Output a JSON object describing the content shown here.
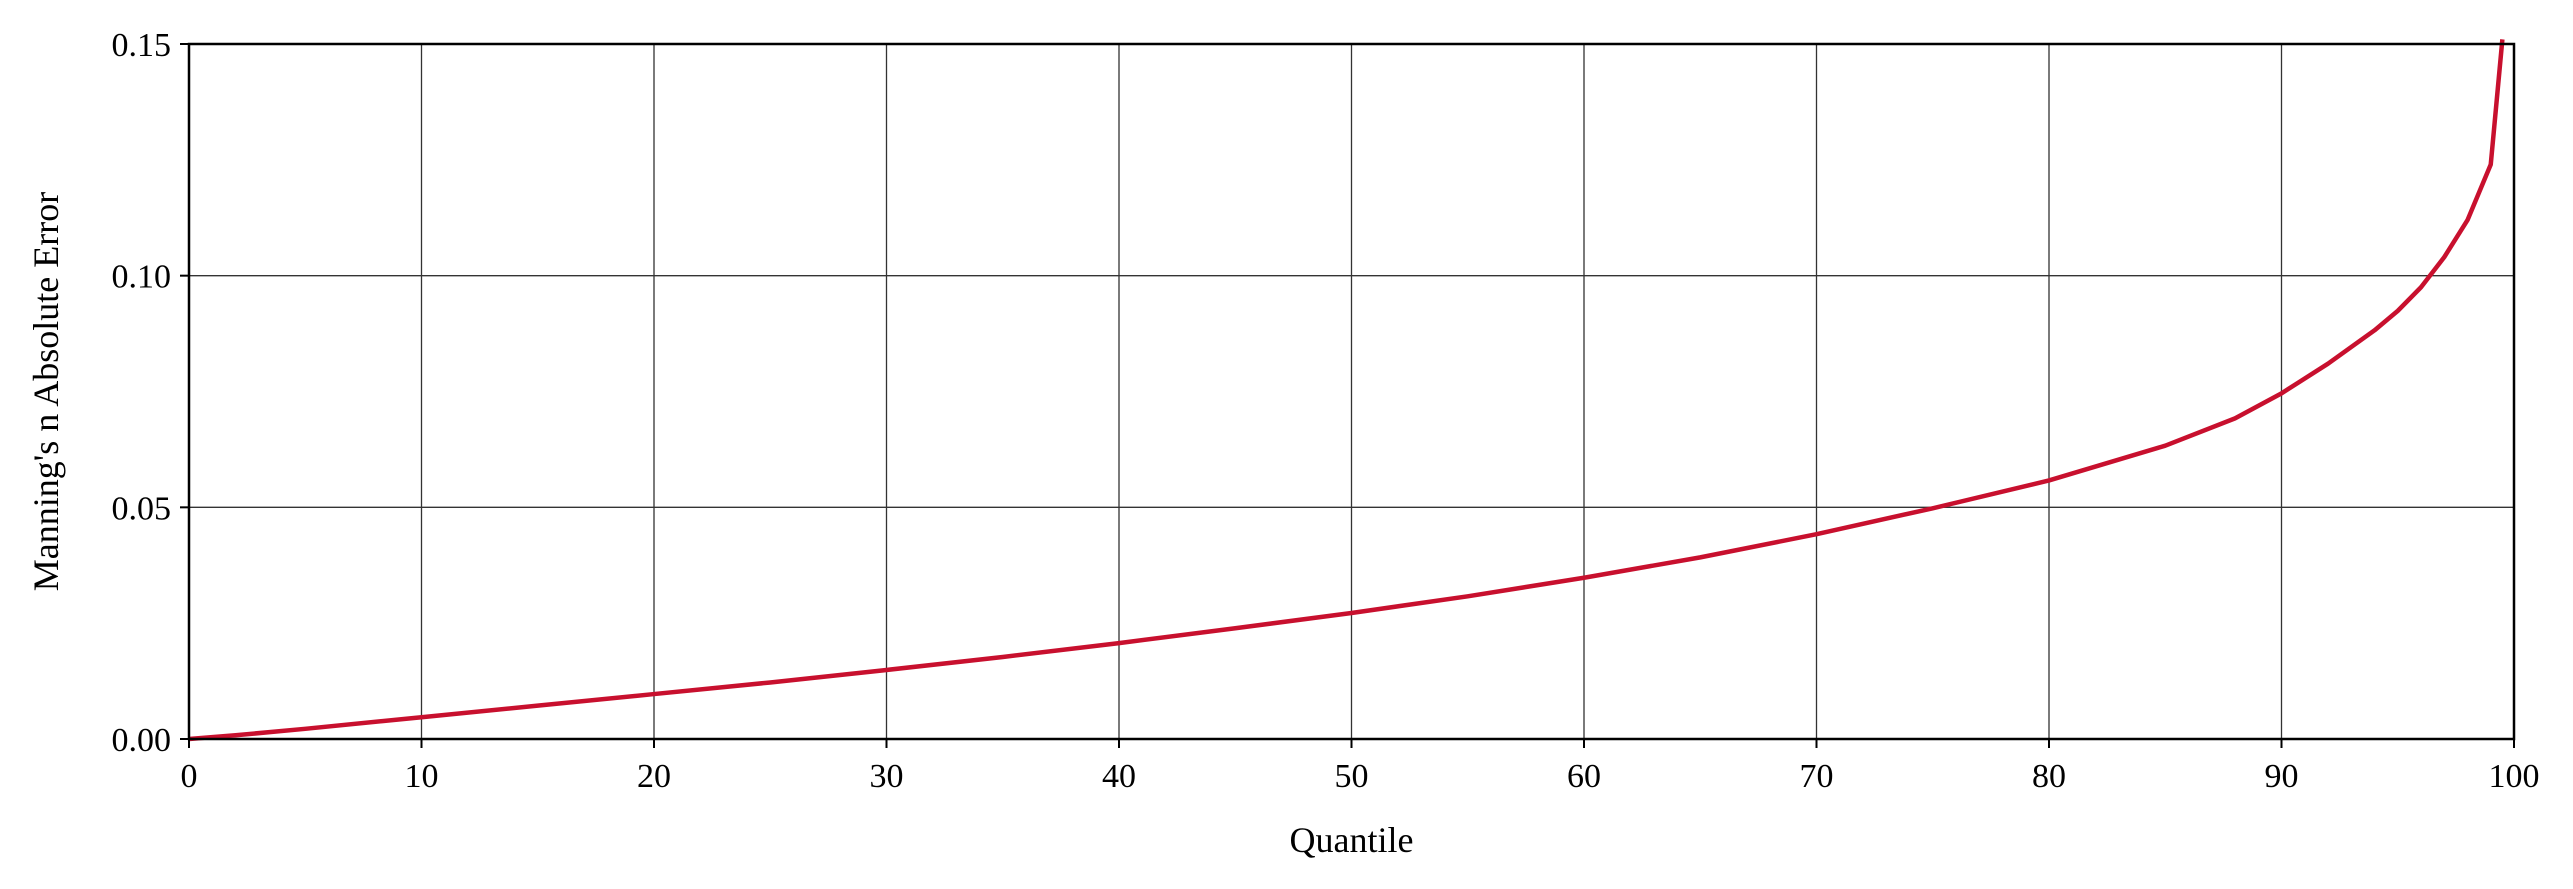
{
  "chart_data": {
    "type": "line",
    "title": "",
    "xlabel": "Quantile",
    "ylabel": "Manning's n Absolute Error",
    "xlim": [
      0,
      100
    ],
    "ylim": [
      0,
      0.15
    ],
    "xticks": [
      0,
      10,
      20,
      30,
      40,
      50,
      60,
      70,
      80,
      90,
      100
    ],
    "xtick_labels": [
      "0",
      "10",
      "20",
      "30",
      "40",
      "50",
      "60",
      "70",
      "80",
      "90",
      "100"
    ],
    "yticks": [
      0,
      0.05,
      0.1,
      0.15
    ],
    "ytick_labels": [
      "0.00",
      "0.05",
      "0.10",
      "0.15"
    ],
    "grid": true,
    "legend": "none",
    "colors": {
      "line": "#c8102e",
      "grid": "#333333",
      "axis": "#000000"
    },
    "series": [
      {
        "x": [
          0,
          2,
          5,
          10,
          15,
          20,
          25,
          30,
          35,
          40,
          45,
          50,
          55,
          60,
          65,
          70,
          75,
          80,
          85,
          88,
          90,
          92,
          94,
          95,
          96,
          97,
          98,
          99,
          99.5
        ],
        "y": [
          0,
          0.0008,
          0.0022,
          0.0047,
          0.0072,
          0.0097,
          0.0122,
          0.0149,
          0.0177,
          0.0207,
          0.0239,
          0.0272,
          0.0308,
          0.0348,
          0.0392,
          0.0442,
          0.0498,
          0.0558,
          0.0633,
          0.0692,
          0.0746,
          0.081,
          0.0882,
          0.0924,
          0.0975,
          0.104,
          0.112,
          0.124,
          0.151
        ]
      }
    ]
  }
}
